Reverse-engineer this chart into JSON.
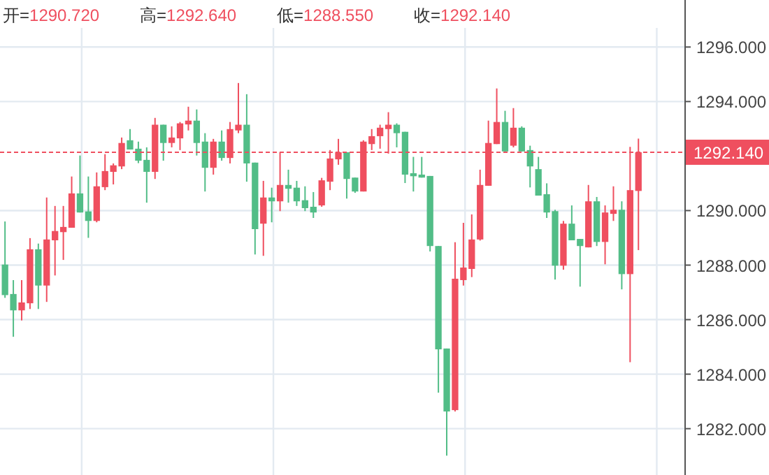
{
  "chart_data": {
    "type": "candlestick",
    "annotations": [
      "开=1290.720",
      "高=1292.640",
      "低=1288.550",
      "收=1292.140"
    ],
    "categories": [
      null,
      null,
      null,
      null,
      null,
      null,
      null,
      null,
      null,
      null,
      null,
      null,
      null,
      null,
      null,
      null,
      null,
      null,
      null,
      null,
      null,
      null,
      null,
      null,
      null,
      null,
      null,
      null,
      null,
      null,
      null,
      null,
      null,
      null,
      null,
      null,
      null,
      null,
      null,
      null,
      null,
      null,
      null,
      null,
      null,
      null,
      null,
      null,
      null,
      null,
      null,
      null,
      null,
      null,
      null,
      null,
      null,
      null,
      null,
      null,
      null,
      null,
      null,
      null,
      null,
      null,
      null,
      null,
      null,
      null,
      null,
      null,
      null,
      null,
      null,
      null,
      null
    ],
    "ohlc": [
      [
        1288.02,
        1289.6,
        1286.8,
        1286.9
      ],
      [
        1286.94,
        1287.45,
        1285.37,
        1286.34
      ],
      [
        1286.34,
        1287.45,
        1285.97,
        1286.63
      ],
      [
        1286.6,
        1288.99,
        1286.39,
        1288.58
      ],
      [
        1288.58,
        1288.79,
        1286.39,
        1287.25
      ],
      [
        1287.25,
        1290.48,
        1286.65,
        1288.94
      ],
      [
        1288.91,
        1290.17,
        1287.62,
        1289.25
      ],
      [
        1289.21,
        1290.17,
        1288.19,
        1289.4
      ],
      [
        1289.37,
        1291.25,
        1289.37,
        1290.63
      ],
      [
        1290.63,
        1292.02,
        1289.93,
        1289.93
      ],
      [
        1289.97,
        1291.25,
        1289.0,
        1289.62
      ],
      [
        1289.62,
        1291.4,
        1289.57,
        1290.89
      ],
      [
        1290.86,
        1292.07,
        1290.75,
        1291.45
      ],
      [
        1291.42,
        1291.73,
        1290.96,
        1291.66
      ],
      [
        1291.62,
        1292.68,
        1291.52,
        1292.48
      ],
      [
        1292.58,
        1292.99,
        1292.24,
        1292.24
      ],
      [
        1292.27,
        1292.53,
        1291.74,
        1291.83
      ],
      [
        1291.86,
        1292.32,
        1290.29,
        1291.42
      ],
      [
        1291.42,
        1293.4,
        1291.16,
        1293.15
      ],
      [
        1293.15,
        1293.15,
        1291.83,
        1292.48
      ],
      [
        1292.48,
        1293.09,
        1292.32,
        1292.68
      ],
      [
        1292.65,
        1293.25,
        1292.22,
        1293.2
      ],
      [
        1293.16,
        1293.81,
        1292.94,
        1293.3
      ],
      [
        1293.3,
        1293.71,
        1292.02,
        1292.48
      ],
      [
        1292.53,
        1292.84,
        1290.7,
        1291.57
      ],
      [
        1291.57,
        1292.63,
        1291.32,
        1292.53
      ],
      [
        1292.53,
        1292.94,
        1291.83,
        1291.93
      ],
      [
        1291.93,
        1293.25,
        1291.73,
        1292.99
      ],
      [
        1292.94,
        1294.68,
        1292.84,
        1293.15
      ],
      [
        1293.15,
        1294.27,
        1291.06,
        1291.73
      ],
      [
        1291.76,
        1291.76,
        1288.39,
        1289.32
      ],
      [
        1289.52,
        1291.09,
        1288.34,
        1290.48
      ],
      [
        1290.48,
        1290.84,
        1289.57,
        1290.34
      ],
      [
        1290.34,
        1292.14,
        1289.98,
        1290.94
      ],
      [
        1290.94,
        1291.5,
        1290.29,
        1290.8
      ],
      [
        1290.84,
        1291.09,
        1290.17,
        1290.34
      ],
      [
        1290.38,
        1290.89,
        1289.98,
        1290.09
      ],
      [
        1290.14,
        1290.68,
        1289.73,
        1289.93
      ],
      [
        1290.19,
        1291.2,
        1290.14,
        1291.11
      ],
      [
        1291.06,
        1292.22,
        1290.75,
        1291.91
      ],
      [
        1291.88,
        1292.63,
        1291.68,
        1292.14
      ],
      [
        1292.14,
        1292.14,
        1290.44,
        1291.16
      ],
      [
        1291.21,
        1291.21,
        1290.65,
        1290.7
      ],
      [
        1290.7,
        1292.58,
        1290.7,
        1292.53
      ],
      [
        1292.44,
        1292.99,
        1292.22,
        1292.73
      ],
      [
        1292.73,
        1293.15,
        1292.27,
        1293.04
      ],
      [
        1292.99,
        1293.61,
        1292.09,
        1293.15
      ],
      [
        1293.15,
        1293.2,
        1292.32,
        1292.84
      ],
      [
        1292.89,
        1292.89,
        1291.01,
        1291.32
      ],
      [
        1291.37,
        1291.97,
        1290.7,
        1291.26
      ],
      [
        1291.32,
        1291.97,
        1291.21,
        1291.21
      ],
      [
        1291.27,
        1291.27,
        1288.5,
        1288.7
      ],
      [
        1288.7,
        1288.7,
        1283.32,
        1284.91
      ],
      [
        1284.94,
        1284.94,
        1281.01,
        1282.63
      ],
      [
        1282.68,
        1288.84,
        1282.63,
        1287.5
      ],
      [
        1287.45,
        1289.55,
        1287.25,
        1287.91
      ],
      [
        1287.86,
        1289.86,
        1287.56,
        1288.94
      ],
      [
        1288.94,
        1291.5,
        1288.9,
        1290.94
      ],
      [
        1290.91,
        1293.3,
        1290.91,
        1292.48
      ],
      [
        1292.44,
        1294.48,
        1292.44,
        1293.25
      ],
      [
        1293.25,
        1293.66,
        1292.17,
        1292.17
      ],
      [
        1292.38,
        1293.76,
        1292.32,
        1293.04
      ],
      [
        1293.04,
        1293.09,
        1292.17,
        1292.17
      ],
      [
        1292.22,
        1292.38,
        1290.85,
        1291.62
      ],
      [
        1291.52,
        1291.97,
        1290.55,
        1290.55
      ],
      [
        1290.6,
        1291.0,
        1289.73,
        1289.93
      ],
      [
        1289.98,
        1290.03,
        1287.47,
        1287.98
      ],
      [
        1287.98,
        1289.62,
        1287.83,
        1289.52
      ],
      [
        1289.52,
        1290.19,
        1288.91,
        1288.91
      ],
      [
        1288.96,
        1288.96,
        1287.21,
        1288.7
      ],
      [
        1288.65,
        1290.94,
        1288.65,
        1290.34
      ],
      [
        1290.34,
        1290.5,
        1288.7,
        1288.85
      ],
      [
        1288.85,
        1290.19,
        1288.03,
        1289.93
      ],
      [
        1289.88,
        1290.89,
        1289.62,
        1290.03
      ],
      [
        1290.03,
        1290.34,
        1287.11,
        1287.67
      ],
      [
        1287.67,
        1292.34,
        1284.44,
        1290.75
      ],
      [
        1290.72,
        1292.64,
        1288.55,
        1292.14
      ]
    ],
    "colors": [
      "#52bd87",
      "#52bd87",
      "#ef4f5f",
      "#ef4f5f",
      "#52bd87",
      "#ef4f5f",
      "#ef4f5f",
      "#ef4f5f",
      "#ef4f5f",
      "#52bd87",
      "#52bd87",
      "#ef4f5f",
      "#ef4f5f",
      "#ef4f5f",
      "#ef4f5f",
      "#52bd87",
      "#52bd87",
      "#52bd87",
      "#ef4f5f",
      "#52bd87",
      "#ef4f5f",
      "#ef4f5f",
      "#ef4f5f",
      "#52bd87",
      "#52bd87",
      "#ef4f5f",
      "#52bd87",
      "#ef4f5f",
      "#ef4f5f",
      "#52bd87",
      "#52bd87",
      "#ef4f5f",
      "#52bd87",
      "#ef4f5f",
      "#52bd87",
      "#52bd87",
      "#52bd87",
      "#52bd87",
      "#ef4f5f",
      "#ef4f5f",
      "#ef4f5f",
      "#52bd87",
      "#52bd87",
      "#ef4f5f",
      "#ef4f5f",
      "#ef4f5f",
      "#ef4f5f",
      "#52bd87",
      "#52bd87",
      "#52bd87",
      "#52bd87",
      "#52bd87",
      "#52bd87",
      "#52bd87",
      "#ef4f5f",
      "#ef4f5f",
      "#ef4f5f",
      "#ef4f5f",
      "#ef4f5f",
      "#ef4f5f",
      "#52bd87",
      "#ef4f5f",
      "#52bd87",
      "#52bd87",
      "#52bd87",
      "#52bd87",
      "#52bd87",
      "#ef4f5f",
      "#52bd87",
      "#52bd87",
      "#ef4f5f",
      "#52bd87",
      "#ef4f5f",
      "#ef4f5f",
      "#52bd87",
      "#ef4f5f",
      "#ef4f5f"
    ],
    "ylim": [
      1280.3,
      1296.7
    ],
    "yticks": [
      {
        "value": 1282,
        "label": "1282.000"
      },
      {
        "value": 1284,
        "label": "1284.000"
      },
      {
        "value": 1286,
        "label": "1286.000"
      },
      {
        "value": 1288,
        "label": "1288.000"
      },
      {
        "value": 1290,
        "label": "1290.000"
      },
      {
        "value": 1294,
        "label": "1294.000"
      },
      {
        "value": 1296,
        "label": "1296.000"
      }
    ],
    "grid": true,
    "ref_lines": [
      {
        "axis": "y",
        "value": 1292.14,
        "label": "1292.140",
        "color": "#ef4f5f",
        "line_style": "dashed"
      }
    ]
  }
}
